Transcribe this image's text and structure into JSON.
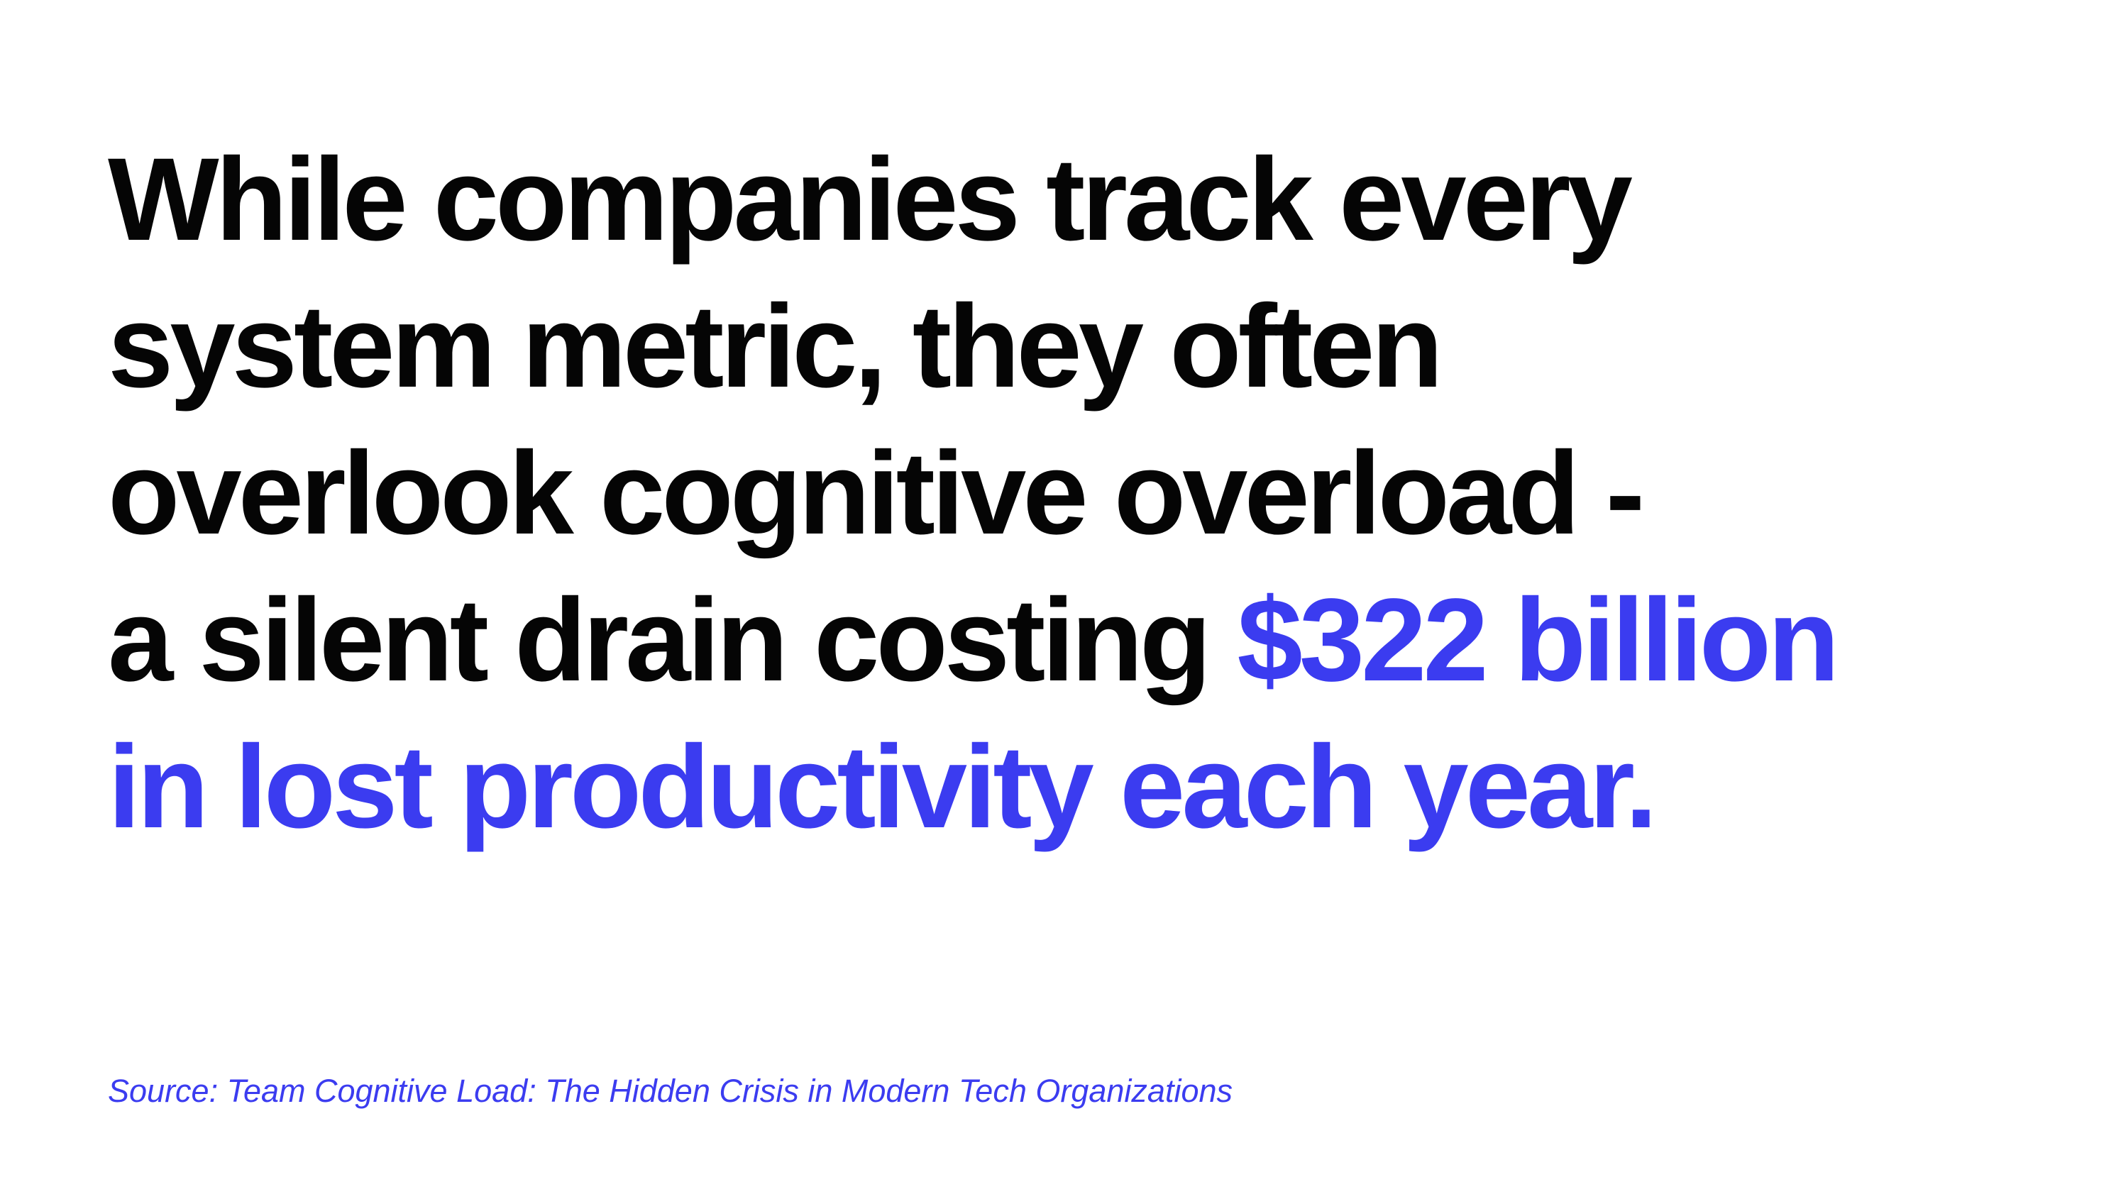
{
  "headline": {
    "line_1": "While companies track every",
    "line_2": "system metric, they often",
    "line_3": "overlook cognitive overload -",
    "line_4_plain": "a silent drain costing ",
    "line_4_highlight": "$322 billion",
    "line_5_highlight": "in lost productivity each year."
  },
  "source": {
    "text": "Source: Team Cognitive Load: The Hidden Crisis in Modern Tech Organizations"
  },
  "colors": {
    "text": "#050505",
    "accent": "#3b3cf0",
    "background": "#ffffff"
  }
}
